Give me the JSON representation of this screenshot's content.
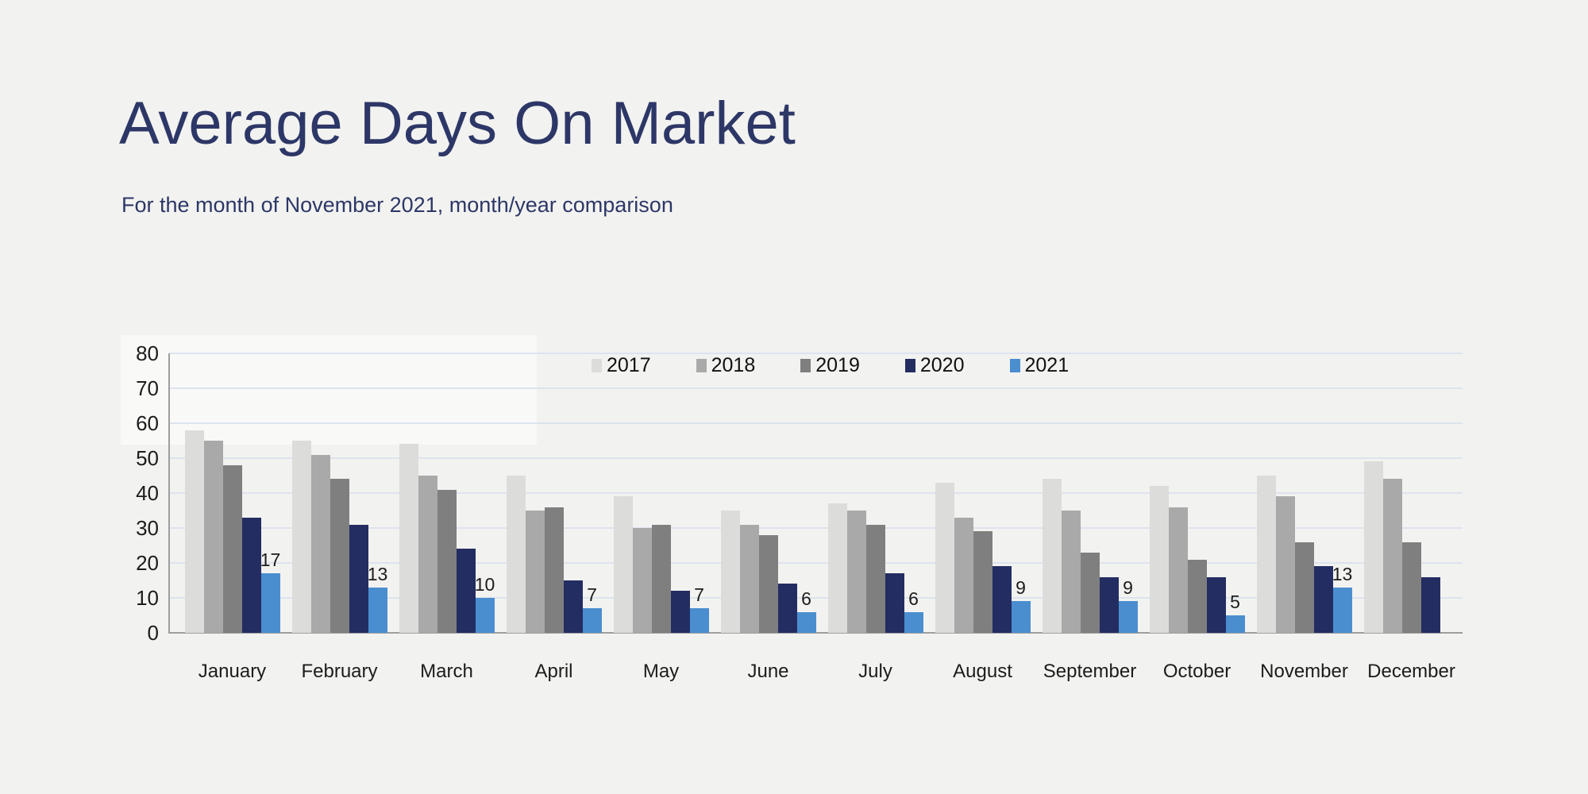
{
  "page": {
    "background": "#f2f2f0",
    "accent_color": "#2d3767"
  },
  "header": {
    "title": "Average Days On Market",
    "subtitle": "For the month of November 2021, month/year comparison"
  },
  "chart_data": {
    "type": "bar",
    "title": "Average Days On Market",
    "subtitle": "For the month of November 2021, month/year comparison",
    "categories": [
      "January",
      "February",
      "March",
      "April",
      "May",
      "June",
      "July",
      "August",
      "September",
      "October",
      "November",
      "December"
    ],
    "series": [
      {
        "name": "2017",
        "color": "#dcdcda",
        "values": [
          58,
          55,
          54,
          45,
          39,
          35,
          37,
          43,
          44,
          42,
          45,
          49
        ]
      },
      {
        "name": "2018",
        "color": "#a9a9a9",
        "values": [
          55,
          51,
          45,
          35,
          30,
          31,
          35,
          33,
          35,
          36,
          39,
          44
        ]
      },
      {
        "name": "2019",
        "color": "#7f7f7f",
        "values": [
          48,
          44,
          41,
          36,
          31,
          28,
          31,
          29,
          23,
          21,
          26,
          26
        ]
      },
      {
        "name": "2020",
        "color": "#232d62",
        "values": [
          33,
          31,
          24,
          15,
          12,
          14,
          17,
          19,
          16,
          16,
          19,
          16
        ]
      },
      {
        "name": "2021",
        "color": "#4a8ecf",
        "values": [
          17,
          13,
          10,
          7,
          7,
          6,
          6,
          9,
          9,
          5,
          13,
          null
        ],
        "data_labels": true
      }
    ],
    "ylim": [
      0,
      80
    ],
    "ytick_step": 10,
    "yticks": [
      0,
      10,
      20,
      30,
      40,
      50,
      60,
      70,
      80
    ],
    "grid": "horizontal",
    "gridline_color": "#dde3ee",
    "axis_color": "#9e9e9e",
    "legend_position": "top-center",
    "legend_entries": [
      "2017",
      "2018",
      "2019",
      "2020",
      "2021"
    ]
  }
}
